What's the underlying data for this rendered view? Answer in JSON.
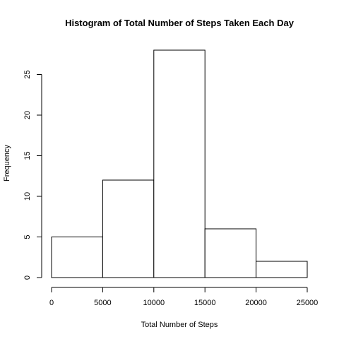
{
  "chart_data": {
    "type": "bar",
    "title": "Histogram of Total Number of Steps Taken Each Day",
    "xlabel": "Total Number of Steps",
    "ylabel": "Frequency",
    "bins": [
      {
        "from": 0,
        "to": 5000,
        "count": 5
      },
      {
        "from": 5000,
        "to": 10000,
        "count": 12
      },
      {
        "from": 10000,
        "to": 15000,
        "count": 28
      },
      {
        "from": 15000,
        "to": 20000,
        "count": 6
      },
      {
        "from": 20000,
        "to": 25000,
        "count": 2
      }
    ],
    "xticks": [
      0,
      5000,
      10000,
      15000,
      20000,
      25000
    ],
    "yticks": [
      0,
      5,
      10,
      15,
      20,
      25
    ],
    "xlim": [
      0,
      25000
    ],
    "ylim": [
      0,
      28
    ],
    "grid": false,
    "bar_fill": "#ffffff",
    "bar_stroke": "#000000"
  }
}
